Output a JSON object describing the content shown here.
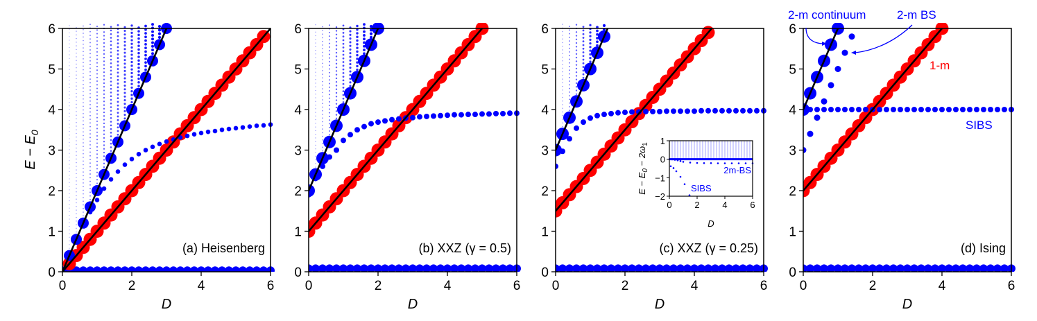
{
  "colors": {
    "one_magnon": "#ff0000",
    "two_magnon": "#0000ff",
    "line": "#000000"
  },
  "chart_data": [
    {
      "type": "scatter",
      "panel_label": "(a) Heisenberg",
      "xlabel": "D",
      "ylabel_main": "E − E",
      "ylabel_sub": "0",
      "xlim": [
        0,
        6
      ],
      "ylim": [
        0,
        6
      ],
      "xticks": [
        0,
        2,
        4,
        6
      ],
      "yticks": [
        0,
        1,
        2,
        3,
        4,
        5,
        6
      ],
      "lines": [
        {
          "intercept": 0,
          "slope": 1
        },
        {
          "intercept": 0,
          "slope": 2
        }
      ],
      "one_magnon": {
        "x": [
          0.2,
          0.4,
          0.6,
          0.8,
          1,
          1.2,
          1.4,
          1.6,
          1.8,
          2,
          2.2,
          2.4,
          2.6,
          2.8,
          3,
          3.2,
          3.4,
          3.6,
          3.8,
          4,
          4.2,
          4.4,
          4.6,
          4.8,
          5,
          5.2,
          5.4,
          5.6,
          5.8
        ],
        "y": [
          0.2,
          0.4,
          0.6,
          0.8,
          1,
          1.2,
          1.4,
          1.6,
          1.8,
          2,
          2.2,
          2.4,
          2.6,
          2.8,
          3,
          3.2,
          3.4,
          3.6,
          3.8,
          4,
          4.2,
          4.4,
          4.6,
          4.8,
          5,
          5.2,
          5.4,
          5.6,
          5.8
        ]
      },
      "two_magnon_edge": {
        "x": [
          0.2,
          0.4,
          0.6,
          0.8,
          1,
          1.2,
          1.4,
          1.6,
          1.8,
          2,
          2.2,
          2.4,
          2.6,
          2.8,
          3
        ],
        "y": [
          0.4,
          0.8,
          1.2,
          1.6,
          2,
          2.4,
          2.8,
          3.2,
          3.6,
          4,
          4.4,
          4.8,
          5.2,
          5.6,
          6
        ]
      },
      "sibs": {
        "x": [
          0.8,
          1,
          1.2,
          1.4,
          1.6,
          1.8,
          2,
          2.2,
          2.4,
          2.6,
          2.8,
          3,
          3.2,
          3.4,
          3.6,
          3.8,
          4,
          4.2,
          4.4,
          4.6,
          4.8,
          5,
          5.2,
          5.4,
          5.6,
          5.8,
          6
        ],
        "y": [
          1.47,
          1.77,
          2.05,
          2.28,
          2.47,
          2.64,
          2.78,
          2.9,
          3.0,
          3.08,
          3.15,
          3.21,
          3.26,
          3.31,
          3.35,
          3.39,
          3.42,
          3.45,
          3.47,
          3.5,
          3.52,
          3.54,
          3.56,
          3.58,
          3.6,
          3.61,
          3.63
        ]
      },
      "continuum_D": [
        0.2,
        0.4,
        0.6,
        0.8,
        1,
        1.2,
        1.4,
        1.6,
        1.8,
        2,
        2.2,
        2.4,
        2.6,
        2.8
      ],
      "ground_level": 0.03
    },
    {
      "type": "scatter",
      "panel_label": "(b) XXZ (γ = 0.5)",
      "xlabel": "D",
      "xlim": [
        0,
        6
      ],
      "ylim": [
        0,
        6
      ],
      "xticks": [
        0,
        2,
        4,
        6
      ],
      "yticks": [
        0,
        1,
        2,
        3,
        4,
        5,
        6
      ],
      "lines": [
        {
          "intercept": 1,
          "slope": 1
        },
        {
          "intercept": 2,
          "slope": 2
        }
      ],
      "one_magnon": {
        "x": [
          0,
          0.2,
          0.4,
          0.6,
          0.8,
          1,
          1.2,
          1.4,
          1.6,
          1.8,
          2,
          2.2,
          2.4,
          2.6,
          2.8,
          3,
          3.2,
          3.4,
          3.6,
          3.8,
          4,
          4.2,
          4.4,
          4.6,
          4.8,
          5
        ],
        "y": [
          1,
          1.2,
          1.4,
          1.6,
          1.8,
          2,
          2.2,
          2.4,
          2.6,
          2.8,
          3,
          3.2,
          3.4,
          3.6,
          3.8,
          4,
          4.2,
          4.4,
          4.6,
          4.8,
          5,
          5.2,
          5.4,
          5.6,
          5.8,
          6
        ]
      },
      "two_magnon_edge": {
        "x": [
          0,
          0.2,
          0.4,
          0.6,
          0.8,
          1,
          1.2,
          1.4,
          1.6,
          1.8,
          2
        ],
        "y": [
          2,
          2.4,
          2.8,
          3.2,
          3.6,
          4,
          4.4,
          4.8,
          5.2,
          5.6,
          6
        ]
      },
      "sibs": {
        "x": [
          0,
          0.2,
          0.4,
          0.6,
          0.8,
          1,
          1.2,
          1.4,
          1.6,
          1.8,
          2,
          2.2,
          2.4,
          2.6,
          2.8,
          3,
          3.2,
          3.4,
          3.6,
          3.8,
          4,
          4.2,
          4.4,
          4.6,
          4.8,
          5,
          5.2,
          5.4,
          5.6,
          5.8,
          6
        ],
        "y": [
          1.9,
          2.3,
          2.6,
          2.83,
          3.0,
          3.24,
          3.38,
          3.5,
          3.58,
          3.65,
          3.69,
          3.72,
          3.75,
          3.77,
          3.79,
          3.8,
          3.82,
          3.83,
          3.84,
          3.85,
          3.86,
          3.87,
          3.87,
          3.88,
          3.88,
          3.89,
          3.89,
          3.9,
          3.9,
          3.91,
          3.91
        ]
      },
      "continuum_D": [
        0.2,
        0.4,
        0.6,
        0.8,
        1,
        1.2,
        1.4,
        1.6,
        1.8
      ],
      "ground_level": 0.08
    },
    {
      "type": "scatter",
      "panel_label": "(c) XXZ (γ = 0.25)",
      "xlabel": "D",
      "xlim": [
        0,
        6
      ],
      "ylim": [
        0,
        6
      ],
      "xticks": [
        0,
        2,
        4,
        6
      ],
      "yticks": [
        0,
        1,
        2,
        3,
        4,
        5,
        6
      ],
      "lines": [
        {
          "intercept": 1.5,
          "slope": 1
        },
        {
          "intercept": 3,
          "slope": 2
        }
      ],
      "one_magnon": {
        "x": [
          0,
          0.2,
          0.4,
          0.6,
          0.8,
          1,
          1.2,
          1.4,
          1.6,
          1.8,
          2,
          2.2,
          2.4,
          2.6,
          2.8,
          3,
          3.2,
          3.4,
          3.6,
          3.8,
          4,
          4.2,
          4.4
        ],
        "y": [
          1.5,
          1.7,
          1.9,
          2.1,
          2.3,
          2.5,
          2.7,
          2.9,
          3.1,
          3.3,
          3.5,
          3.7,
          3.9,
          4.1,
          4.3,
          4.5,
          4.7,
          4.9,
          5.1,
          5.3,
          5.5,
          5.7,
          5.9
        ]
      },
      "two_magnon_edge": {
        "x": [
          0,
          0.2,
          0.4,
          0.6,
          0.8,
          1,
          1.2,
          1.4
        ],
        "y": [
          3,
          3.4,
          3.8,
          4.2,
          4.6,
          5,
          5.4,
          5.8
        ]
      },
      "sibs": {
        "x": [
          0,
          0.2,
          0.4,
          0.6,
          0.8,
          1,
          1.2,
          1.4,
          1.6,
          1.8,
          2,
          2.2,
          2.4,
          2.6,
          2.8,
          3,
          3.2,
          3.4,
          3.6,
          3.8,
          4,
          4.2,
          4.4,
          4.6,
          4.8,
          5,
          5.2,
          5.4,
          5.6,
          5.8,
          6
        ],
        "y": [
          2.6,
          2.97,
          3.28,
          3.54,
          3.69,
          3.79,
          3.85,
          3.88,
          3.9,
          3.92,
          3.93,
          3.94,
          3.94,
          3.95,
          3.95,
          3.95,
          3.96,
          3.96,
          3.96,
          3.96,
          3.96,
          3.97,
          3.97,
          3.97,
          3.97,
          3.97,
          3.97,
          3.97,
          3.97,
          3.97,
          3.97
        ]
      },
      "continuum_D": [
        0.2,
        0.4,
        0.6,
        0.8,
        1,
        1.2,
        1.4
      ],
      "ground_level": 0.08,
      "inset": {
        "xlabel": "D",
        "ylabel_parts": [
          "E − E",
          "0",
          " − 2ω",
          "1"
        ],
        "xlim": [
          0,
          6
        ],
        "ylim": [
          -2,
          1
        ],
        "xticks": [
          0,
          2,
          4,
          6
        ],
        "yticks": [
          1,
          0,
          -1,
          -2
        ],
        "two_m_bs": {
          "x": [
            0,
            0.2,
            0.4,
            0.6,
            0.8,
            1,
            1.5,
            2,
            2.5,
            3,
            3.5,
            4,
            4.5,
            5,
            5.5,
            6
          ],
          "y": [
            0,
            -0.01,
            -0.03,
            -0.06,
            -0.1,
            -0.14,
            -0.18,
            -0.2,
            -0.21,
            -0.21,
            -0.22,
            -0.22,
            -0.22,
            -0.22,
            -0.22,
            -0.22
          ]
        },
        "sibs": {
          "x": [
            0.1,
            0.3,
            0.5,
            0.8,
            1.1,
            1.45
          ],
          "y": [
            -0.38,
            -0.48,
            -0.65,
            -0.95,
            -1.35,
            -1.95
          ]
        },
        "label_2m_bs": "2m-BS",
        "label_sibs": "SIBS"
      }
    },
    {
      "type": "scatter",
      "panel_label": "(d) Ising",
      "xlabel": "D",
      "xlim": [
        0,
        6
      ],
      "ylim": [
        0,
        6
      ],
      "xticks": [
        0,
        2,
        4,
        6
      ],
      "yticks": [
        0,
        1,
        2,
        3,
        4,
        5,
        6
      ],
      "lines": [
        {
          "intercept": 2,
          "slope": 1
        },
        {
          "intercept": 4,
          "slope": 2
        }
      ],
      "one_magnon": {
        "x": [
          0,
          0.2,
          0.4,
          0.6,
          0.8,
          1,
          1.2,
          1.4,
          1.6,
          1.8,
          2,
          2.2,
          2.4,
          2.6,
          2.8,
          3,
          3.2,
          3.4,
          3.6,
          3.8,
          4
        ],
        "y": [
          2,
          2.2,
          2.4,
          2.6,
          2.8,
          3,
          3.2,
          3.4,
          3.6,
          3.8,
          4,
          4.2,
          4.4,
          4.6,
          4.8,
          5,
          5.2,
          5.4,
          5.6,
          5.8,
          6
        ]
      },
      "two_magnon_edge": {
        "x": [
          0,
          0.2,
          0.4,
          0.6,
          0.8,
          1
        ],
        "y": [
          4,
          4.4,
          4.8,
          5.2,
          5.6,
          6
        ]
      },
      "bound_state": {
        "x": [
          0,
          0.2,
          0.4,
          0.6,
          0.8,
          1,
          1.2,
          1.4
        ],
        "y": [
          3,
          3.4,
          3.8,
          4.2,
          4.6,
          5,
          5.4,
          5.8
        ]
      },
      "sibs": {
        "x": [
          0,
          0.2,
          0.4,
          0.6,
          0.8,
          1,
          1.2,
          1.4,
          1.6,
          1.8,
          2,
          2.2,
          2.4,
          2.6,
          2.8,
          3,
          3.2,
          3.4,
          3.6,
          3.8,
          4,
          4.2,
          4.4,
          4.6,
          4.8,
          5,
          5.2,
          5.4,
          5.6,
          5.8,
          6
        ],
        "y": [
          4,
          4,
          4,
          4,
          4,
          4,
          4,
          4,
          4,
          4,
          4,
          4,
          4,
          4,
          4,
          4,
          4,
          4,
          4,
          4,
          4,
          4,
          4,
          4,
          4,
          4,
          4,
          4,
          4,
          4,
          4
        ]
      },
      "continuum_D": [],
      "ground_level": 0.08,
      "annotations": {
        "continuum": "2-m continuum",
        "bs": "2-m BS",
        "one_m": "1-m",
        "sibs": "SIBS"
      }
    }
  ]
}
